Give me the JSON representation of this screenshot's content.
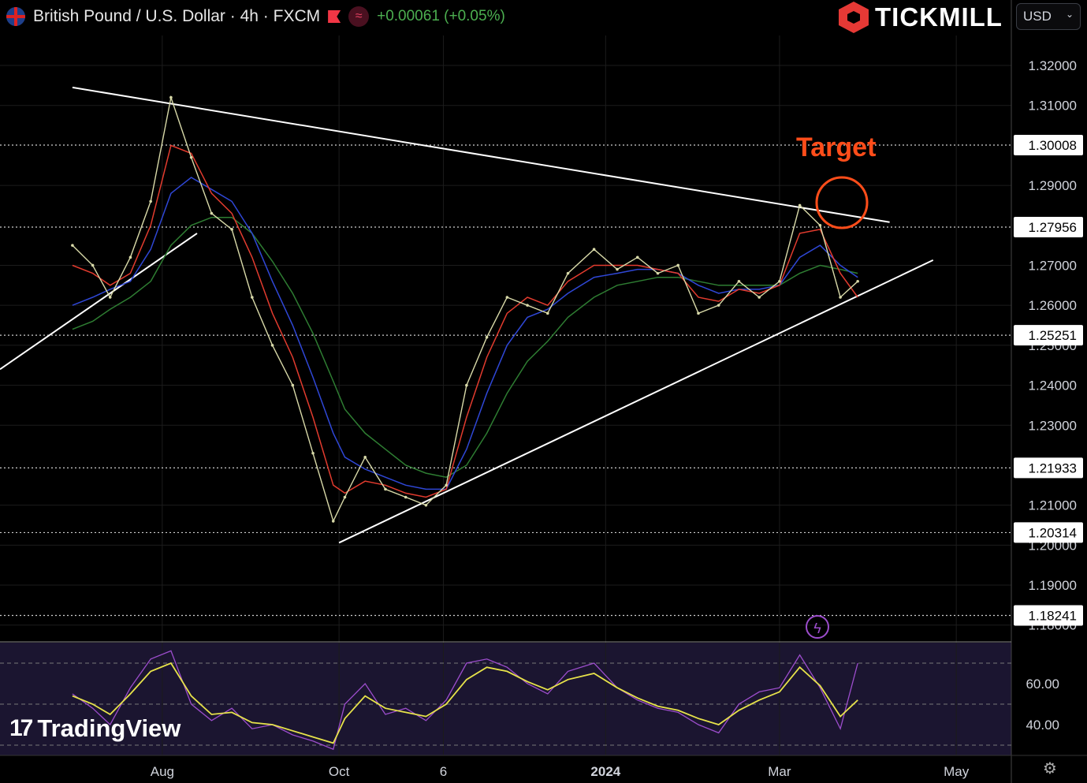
{
  "header": {
    "symbol_title": "British Pound / U.S. Dollar · 4h · FXCM",
    "change": "+0.00061 (+0.05%)"
  },
  "brand": {
    "name": "TICKMILL"
  },
  "currency_select": {
    "value": "USD"
  },
  "watermark": {
    "text": "TradingView"
  },
  "annotation": {
    "target_label": "Target"
  },
  "icons": {
    "flag": "uk-us-flag-icon",
    "marker": "red-flag-icon",
    "indicator": "wave-icon",
    "bolt": "lightning-icon",
    "settings": "gear-icon"
  },
  "colors": {
    "background": "#000000",
    "price": "#d8d9a8",
    "ma_fast": "#e23b2e",
    "ma_mid": "#2f47d6",
    "ma_slow": "#2e7d32",
    "trendline": "#ffffff",
    "target": "#ff4d1a",
    "rsi": "#9c4dcc",
    "rsi_signal": "#e7e34a"
  },
  "chart_data": [
    {
      "type": "line",
      "title": "British Pound / U.S. Dollar · 4h · FXCM",
      "x_axis_labels": [
        "Aug",
        "Oct",
        "6",
        "2024",
        "Mar",
        "May"
      ],
      "y_ticks": [
        "1.32000",
        "1.31000",
        "1.29000",
        "1.27000",
        "1.26000",
        "1.25000",
        "1.24000",
        "1.23000",
        "1.21000",
        "1.20000",
        "1.19000",
        "1.18000"
      ],
      "ylim": [
        1.176,
        1.3275
      ],
      "price_levels": [
        "1.30008",
        "1.27956",
        "1.25251",
        "1.21933",
        "1.20314",
        "1.18241"
      ],
      "x": [
        "2023-07-01",
        "2023-07-08",
        "2023-07-14",
        "2023-07-21",
        "2023-07-28",
        "2023-08-04",
        "2023-08-11",
        "2023-08-18",
        "2023-08-25",
        "2023-09-01",
        "2023-09-08",
        "2023-09-15",
        "2023-09-22",
        "2023-09-29",
        "2023-10-03",
        "2023-10-10",
        "2023-10-17",
        "2023-10-24",
        "2023-10-31",
        "2023-11-07",
        "2023-11-14",
        "2023-11-21",
        "2023-11-28",
        "2023-12-05",
        "2023-12-12",
        "2023-12-19",
        "2023-12-28",
        "2024-01-05",
        "2024-01-12",
        "2024-01-19",
        "2024-01-26",
        "2024-02-02",
        "2024-02-09",
        "2024-02-16",
        "2024-02-23",
        "2024-03-01",
        "2024-03-08",
        "2024-03-15",
        "2024-03-22",
        "2024-03-28"
      ],
      "series": [
        {
          "values": [
            1.275,
            1.27,
            1.262,
            1.272,
            1.286,
            1.312,
            1.297,
            1.283,
            1.279,
            1.262,
            1.25,
            1.24,
            1.223,
            1.206,
            1.212,
            1.222,
            1.214,
            1.212,
            1.21,
            1.215,
            1.24,
            1.252,
            1.262,
            1.26,
            1.258,
            1.268,
            1.274,
            1.269,
            1.272,
            1.268,
            1.27,
            1.258,
            1.26,
            1.266,
            1.262,
            1.266,
            1.285,
            1.28,
            1.262,
            1.266
          ]
        },
        {
          "values": [
            1.27,
            1.268,
            1.265,
            1.268,
            1.28,
            1.3,
            1.298,
            1.288,
            1.283,
            1.272,
            1.258,
            1.247,
            1.232,
            1.215,
            1.213,
            1.216,
            1.215,
            1.213,
            1.212,
            1.214,
            1.232,
            1.247,
            1.258,
            1.262,
            1.26,
            1.266,
            1.27,
            1.27,
            1.27,
            1.269,
            1.268,
            1.262,
            1.261,
            1.264,
            1.263,
            1.265,
            1.278,
            1.279,
            1.268,
            1.262
          ]
        },
        {
          "values": [
            1.26,
            1.262,
            1.264,
            1.266,
            1.274,
            1.288,
            1.292,
            1.289,
            1.286,
            1.278,
            1.266,
            1.255,
            1.242,
            1.228,
            1.222,
            1.219,
            1.217,
            1.215,
            1.214,
            1.214,
            1.224,
            1.238,
            1.25,
            1.257,
            1.259,
            1.263,
            1.267,
            1.268,
            1.269,
            1.269,
            1.268,
            1.265,
            1.263,
            1.264,
            1.264,
            1.265,
            1.272,
            1.275,
            1.27,
            1.267
          ]
        },
        {
          "values": [
            1.254,
            1.256,
            1.259,
            1.262,
            1.266,
            1.275,
            1.28,
            1.282,
            1.282,
            1.278,
            1.271,
            1.263,
            1.253,
            1.241,
            1.234,
            1.228,
            1.224,
            1.22,
            1.218,
            1.217,
            1.22,
            1.228,
            1.238,
            1.246,
            1.251,
            1.257,
            1.262,
            1.265,
            1.266,
            1.267,
            1.267,
            1.266,
            1.265,
            1.265,
            1.265,
            1.265,
            1.268,
            1.27,
            1.269,
            1.268
          ]
        }
      ]
    },
    {
      "type": "line",
      "y_ticks": [
        "60.00",
        "40.00"
      ],
      "ylim": [
        25,
        80
      ],
      "x": [
        "2023-07-01",
        "2023-07-08",
        "2023-07-14",
        "2023-07-21",
        "2023-07-28",
        "2023-08-04",
        "2023-08-11",
        "2023-08-18",
        "2023-08-25",
        "2023-09-01",
        "2023-09-08",
        "2023-09-15",
        "2023-09-22",
        "2023-09-29",
        "2023-10-03",
        "2023-10-10",
        "2023-10-17",
        "2023-10-24",
        "2023-10-31",
        "2023-11-07",
        "2023-11-14",
        "2023-11-21",
        "2023-11-28",
        "2023-12-05",
        "2023-12-12",
        "2023-12-19",
        "2023-12-28",
        "2024-01-05",
        "2024-01-12",
        "2024-01-19",
        "2024-01-26",
        "2024-02-02",
        "2024-02-09",
        "2024-02-16",
        "2024-02-23",
        "2024-03-01",
        "2024-03-08",
        "2024-03-15",
        "2024-03-22",
        "2024-03-28"
      ],
      "series": [
        {
          "values": [
            55,
            48,
            40,
            58,
            72,
            76,
            50,
            42,
            48,
            38,
            40,
            35,
            32,
            28,
            50,
            60,
            45,
            48,
            42,
            52,
            70,
            72,
            68,
            60,
            55,
            66,
            70,
            58,
            52,
            48,
            46,
            40,
            36,
            50,
            56,
            58,
            74,
            58,
            38,
            70
          ]
        },
        {
          "values": [
            54,
            50,
            45,
            55,
            66,
            70,
            54,
            45,
            46,
            41,
            40,
            37,
            34,
            31,
            43,
            54,
            48,
            46,
            44,
            50,
            62,
            68,
            66,
            61,
            57,
            62,
            65,
            58,
            53,
            49,
            47,
            43,
            40,
            47,
            52,
            56,
            68,
            59,
            44,
            52
          ]
        }
      ]
    }
  ]
}
